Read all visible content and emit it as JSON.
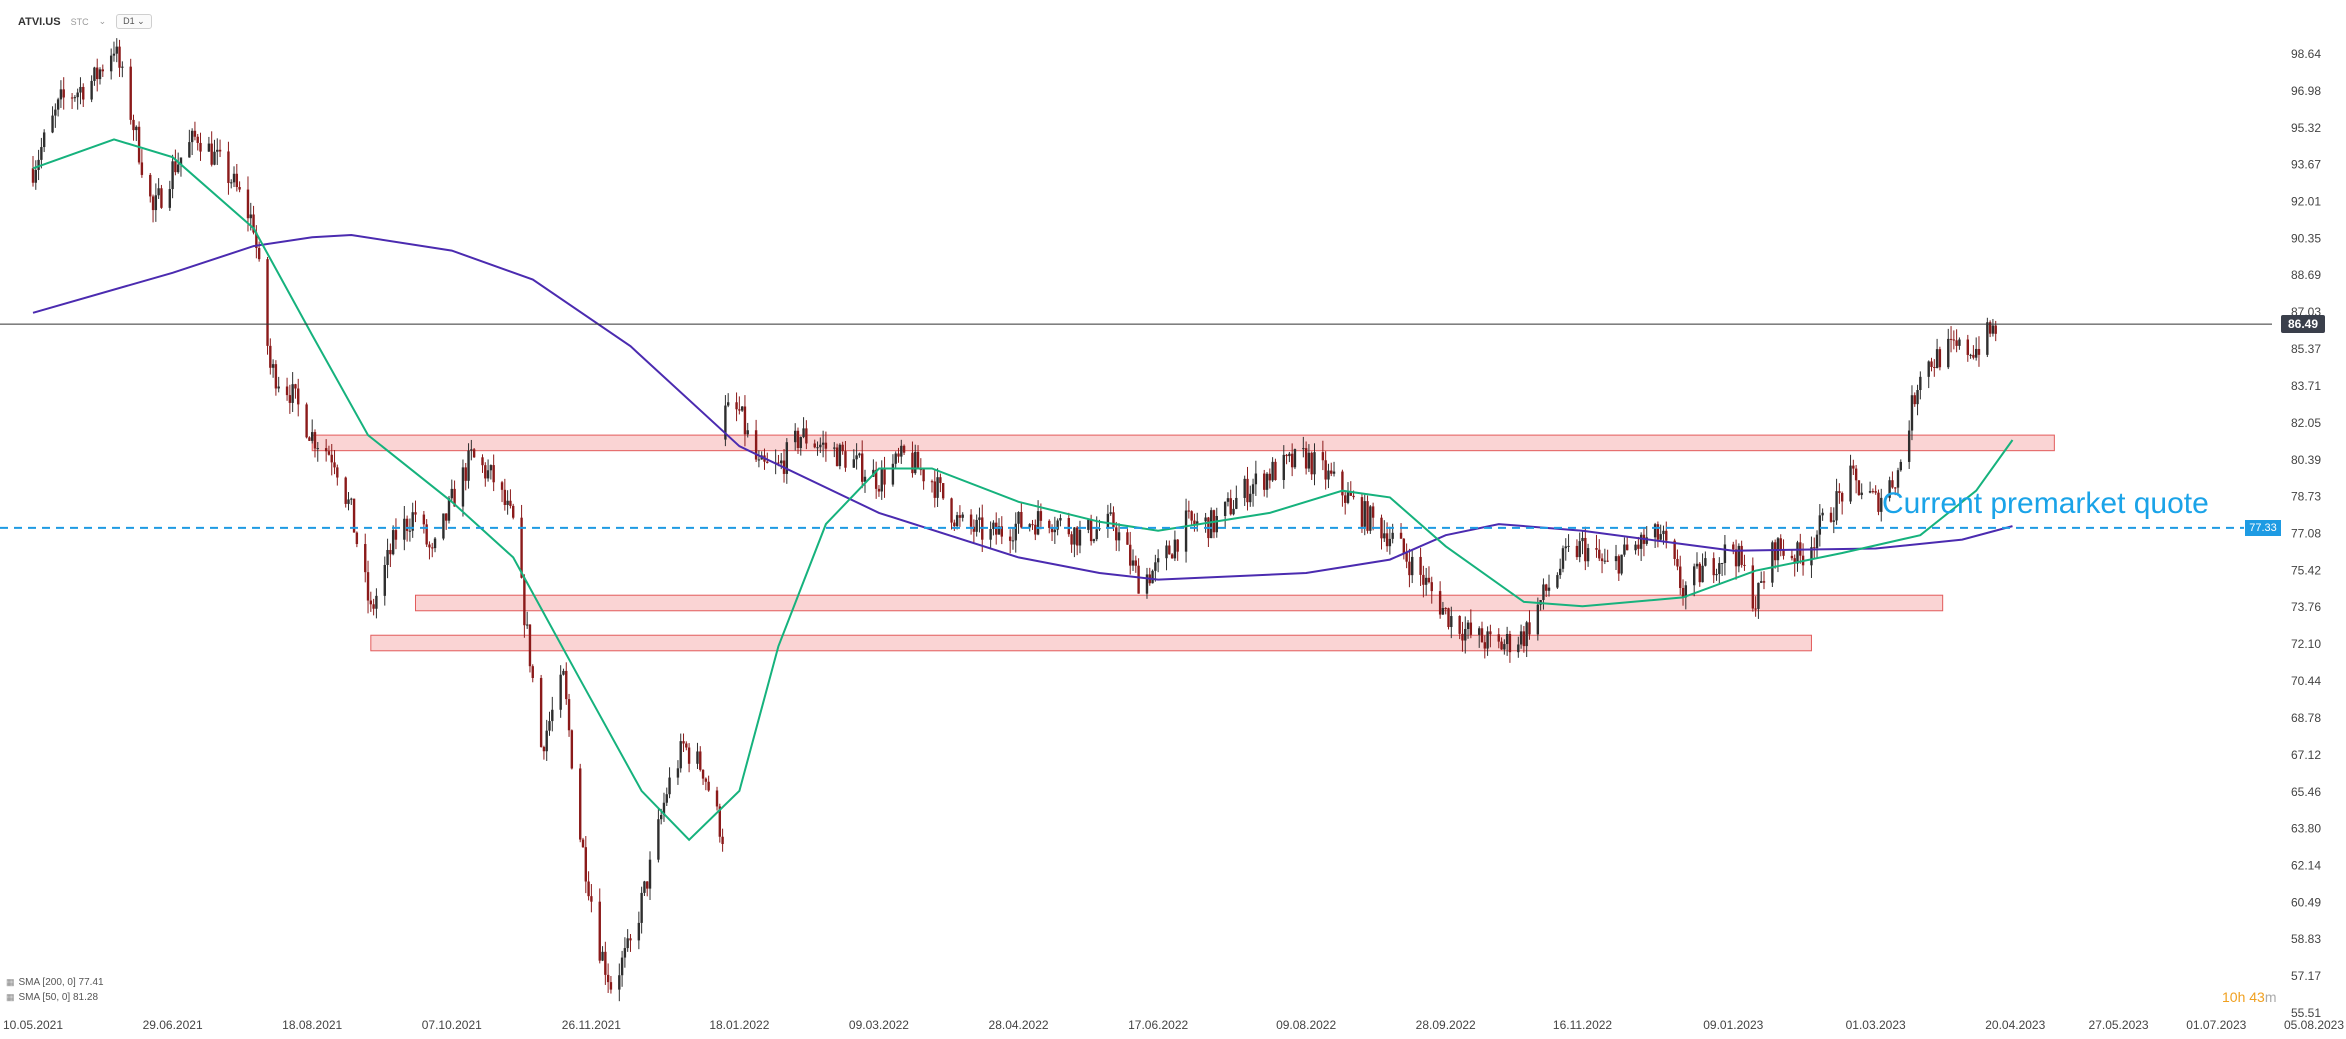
{
  "header": {
    "symbol": "ATVI.US",
    "market_tag": "STC",
    "timeframe": "D1"
  },
  "legend": [
    {
      "label": "SMA [200, 0] 77.41"
    },
    {
      "label": "SMA [50, 0] 81.28"
    }
  ],
  "countdown": {
    "hours": "10h",
    "minutes": "43",
    "unit": "m"
  },
  "annotation": "Current premarket quote",
  "current_price_tag": "86.49",
  "quote_tag": "77.33",
  "colors": {
    "up": "#2e2e2e",
    "down": "#8b1a1a",
    "sma50": "#16b27d",
    "sma200": "#4b2bb0",
    "zone_fill": "#fad4d4",
    "zone_stroke": "#e25b5b",
    "quote_line": "#1e9be3",
    "price_line": "#333333"
  },
  "chart_data": {
    "type": "candlestick",
    "symbol": "ATVI.US",
    "timeframe": "D1",
    "y_axis": {
      "ticks": [
        "98.64",
        "96.98",
        "95.32",
        "93.67",
        "92.01",
        "90.35",
        "88.69",
        "87.03",
        "85.37",
        "83.71",
        "82.05",
        "80.39",
        "78.73",
        "77.08",
        "75.42",
        "73.76",
        "72.10",
        "70.44",
        "68.78",
        "67.12",
        "65.46",
        "63.80",
        "62.14",
        "60.49",
        "58.83",
        "57.17",
        "55.51"
      ],
      "range": [
        55.51,
        98.64
      ]
    },
    "x_axis": {
      "ticks": [
        "10.05.2021",
        "29.06.2021",
        "18.08.2021",
        "07.10.2021",
        "26.11.2021",
        "18.01.2022",
        "09.03.2022",
        "28.04.2022",
        "17.06.2022",
        "09.08.2022",
        "28.09.2022",
        "16.11.2022",
        "09.01.2023",
        "01.03.2023",
        "20.04.2023",
        "27.05.2023",
        "01.07.2023",
        "05.08.2023"
      ]
    },
    "price_path": [
      [
        "10.05.2021",
        93.5
      ],
      [
        "20.05.2021",
        96.5
      ],
      [
        "01.06.2021",
        97.5
      ],
      [
        "08.06.2021",
        99.0
      ],
      [
        "14.06.2021",
        96.0
      ],
      [
        "22.06.2021",
        91.5
      ],
      [
        "29.06.2021",
        93.5
      ],
      [
        "08.07.2021",
        95.0
      ],
      [
        "20.07.2021",
        93.0
      ],
      [
        "28.07.2021",
        91.0
      ],
      [
        "03.08.2021",
        84.5
      ],
      [
        "10.08.2021",
        83.5
      ],
      [
        "18.08.2021",
        81.5
      ],
      [
        "26.08.2021",
        80.5
      ],
      [
        "01.09.2021",
        78.0
      ],
      [
        "08.09.2021",
        73.5
      ],
      [
        "17.09.2021",
        77.0
      ],
      [
        "24.09.2021",
        78.0
      ],
      [
        "30.09.2021",
        76.0
      ],
      [
        "07.10.2021",
        78.5
      ],
      [
        "14.10.2021",
        80.5
      ],
      [
        "22.10.2021",
        79.5
      ],
      [
        "29.10.2021",
        77.5
      ],
      [
        "08.11.2021",
        67.5
      ],
      [
        "16.11.2021",
        70.5
      ],
      [
        "22.11.2021",
        63.5
      ],
      [
        "29.11.2021",
        58.5
      ],
      [
        "03.12.2021",
        56.8
      ],
      [
        "10.12.2021",
        58.5
      ],
      [
        "17.12.2021",
        62.0
      ],
      [
        "23.12.2021",
        65.5
      ],
      [
        "29.12.2021",
        67.5
      ],
      [
        "05.01.2022",
        66.5
      ],
      [
        "12.01.2022",
        63.5
      ],
      [
        "18.01.2022",
        82.5
      ],
      [
        "25.01.2022",
        80.0
      ],
      [
        "01.02.2022",
        80.0
      ],
      [
        "09.02.2022",
        81.5
      ],
      [
        "17.02.2022",
        81.0
      ],
      [
        "25.02.2022",
        80.5
      ],
      [
        "09.03.2022",
        79.5
      ],
      [
        "18.03.2022",
        80.5
      ],
      [
        "28.03.2022",
        79.5
      ],
      [
        "07.04.2022",
        77.5
      ],
      [
        "18.04.2022",
        77.0
      ],
      [
        "28.04.2022",
        77.5
      ],
      [
        "09.05.2022",
        77.8
      ],
      [
        "20.05.2022",
        77.0
      ],
      [
        "01.06.2022",
        77.5
      ],
      [
        "10.06.2022",
        75.0
      ],
      [
        "17.06.2022",
        75.5
      ],
      [
        "27.06.2022",
        77.5
      ],
      [
        "07.07.2022",
        77.5
      ],
      [
        "18.07.2022",
        79.0
      ],
      [
        "27.07.2022",
        79.8
      ],
      [
        "09.08.2022",
        80.5
      ],
      [
        "18.08.2022",
        79.5
      ],
      [
        "29.08.2022",
        78.0
      ],
      [
        "08.09.2022",
        77.0
      ],
      [
        "20.09.2022",
        75.0
      ],
      [
        "28.09.2022",
        73.5
      ],
      [
        "07.10.2022",
        72.5
      ],
      [
        "17.10.2022",
        72.0
      ],
      [
        "26.10.2022",
        72.5
      ],
      [
        "03.11.2022",
        74.5
      ],
      [
        "10.11.2022",
        76.0
      ],
      [
        "16.11.2022",
        76.5
      ],
      [
        "25.11.2022",
        75.5
      ],
      [
        "05.12.2022",
        76.5
      ],
      [
        "14.12.2022",
        77.0
      ],
      [
        "22.12.2022",
        74.5
      ],
      [
        "30.12.2022",
        75.5
      ],
      [
        "09.01.2023",
        76.5
      ],
      [
        "17.01.2023",
        74.0
      ],
      [
        "24.01.2023",
        76.5
      ],
      [
        "02.02.2023",
        76.0
      ],
      [
        "10.02.2023",
        77.5
      ],
      [
        "20.02.2023",
        79.5
      ],
      [
        "01.03.2023",
        78.5
      ],
      [
        "09.03.2023",
        79.8
      ],
      [
        "17.03.2023",
        84.5
      ],
      [
        "27.03.2023",
        85.3
      ],
      [
        "06.04.2023",
        85.4
      ],
      [
        "14.04.2023",
        86.5
      ]
    ],
    "sma50_path": [
      [
        "10.05.2021",
        93.5
      ],
      [
        "08.06.2021",
        94.8
      ],
      [
        "29.06.2021",
        94.0
      ],
      [
        "28.07.2021",
        90.8
      ],
      [
        "18.08.2021",
        86.0
      ],
      [
        "07.09.2021",
        81.5
      ],
      [
        "07.10.2021",
        78.5
      ],
      [
        "29.10.2021",
        76.0
      ],
      [
        "22.11.2021",
        70.5
      ],
      [
        "14.12.2021",
        65.5
      ],
      [
        "31.12.2021",
        63.3
      ],
      [
        "18.01.2022",
        65.5
      ],
      [
        "01.02.2022",
        72.0
      ],
      [
        "18.02.2022",
        77.5
      ],
      [
        "09.03.2022",
        80.0
      ],
      [
        "28.03.2022",
        80.0
      ],
      [
        "28.04.2022",
        78.5
      ],
      [
        "27.05.2022",
        77.6
      ],
      [
        "17.06.2022",
        77.2
      ],
      [
        "27.07.2022",
        78.0
      ],
      [
        "22.08.2022",
        79.0
      ],
      [
        "08.09.2022",
        78.7
      ],
      [
        "28.09.2022",
        76.5
      ],
      [
        "26.10.2022",
        74.0
      ],
      [
        "16.11.2022",
        73.8
      ],
      [
        "22.12.2022",
        74.2
      ],
      [
        "17.01.2023",
        75.4
      ],
      [
        "17.02.2023",
        76.2
      ],
      [
        "17.03.2023",
        77.0
      ],
      [
        "06.04.2023",
        79.0
      ],
      [
        "19.04.2023",
        81.28
      ]
    ],
    "sma200_path": [
      [
        "10.05.2021",
        87.0
      ],
      [
        "29.06.2021",
        88.8
      ],
      [
        "28.07.2021",
        90.0
      ],
      [
        "18.08.2021",
        90.4
      ],
      [
        "01.09.2021",
        90.5
      ],
      [
        "07.10.2021",
        89.8
      ],
      [
        "05.11.2021",
        88.5
      ],
      [
        "10.12.2021",
        85.5
      ],
      [
        "18.01.2022",
        81.0
      ],
      [
        "09.03.2022",
        78.0
      ],
      [
        "28.04.2022",
        76.0
      ],
      [
        "27.05.2022",
        75.3
      ],
      [
        "17.06.2022",
        75.0
      ],
      [
        "09.08.2022",
        75.3
      ],
      [
        "08.09.2022",
        75.9
      ],
      [
        "28.09.2022",
        77.0
      ],
      [
        "17.10.2022",
        77.5
      ],
      [
        "16.11.2022",
        77.2
      ],
      [
        "22.12.2022",
        76.6
      ],
      [
        "09.01.2023",
        76.3
      ],
      [
        "01.03.2023",
        76.4
      ],
      [
        "01.04.2023",
        76.8
      ],
      [
        "19.04.2023",
        77.41
      ]
    ],
    "zones": [
      {
        "from": "18.08.2021",
        "to": "04.05.2023",
        "low": 80.8,
        "high": 81.5
      },
      {
        "from": "24.09.2021",
        "to": "25.03.2023",
        "low": 73.6,
        "high": 74.3
      },
      {
        "from": "08.09.2021",
        "to": "06.02.2023",
        "low": 71.8,
        "high": 72.5
      }
    ],
    "current_price": 86.49,
    "premarket_quote": 77.33,
    "grid": false
  }
}
